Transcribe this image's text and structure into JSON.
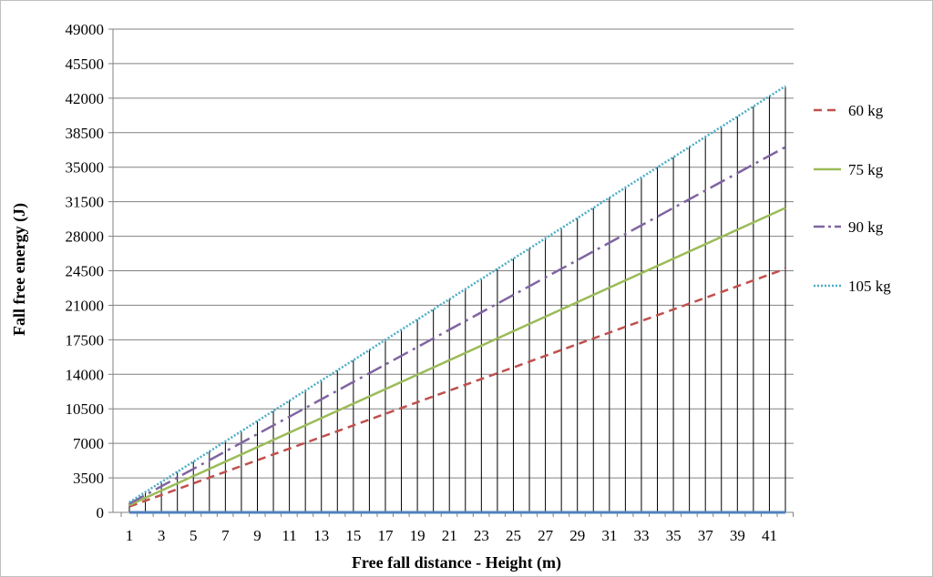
{
  "chart_data": {
    "type": "line",
    "xlabel": "Free fall distance - Height (m)",
    "ylabel": "Fall free energy (J)",
    "xlim": [
      1,
      42
    ],
    "ylim": [
      0,
      49000
    ],
    "y_ticks": [
      "0",
      "3500",
      "7000",
      "10500",
      "14000",
      "17500",
      "21000",
      "24500",
      "28000",
      "31500",
      "35000",
      "38500",
      "42000",
      "45500",
      "49000"
    ],
    "x_ticks": [
      "1",
      "3",
      "5",
      "7",
      "9",
      "11",
      "13",
      "15",
      "17",
      "19",
      "21",
      "23",
      "25",
      "27",
      "29",
      "31",
      "33",
      "35",
      "37",
      "39",
      "41"
    ],
    "x_tick_values": [
      1,
      3,
      5,
      7,
      9,
      11,
      13,
      15,
      17,
      19,
      21,
      23,
      25,
      27,
      29,
      31,
      33,
      35,
      37,
      39,
      41
    ],
    "grid": {
      "horizontal": true,
      "vertical_drop_lines": true
    },
    "legend_position": "right",
    "series": [
      {
        "name": "60 kg",
        "x": [
          1,
          42
        ],
        "values": [
          588,
          24696
        ],
        "color": "#c0504d",
        "style": "dashed"
      },
      {
        "name": "75 kg",
        "x": [
          1,
          42
        ],
        "values": [
          735,
          30870
        ],
        "color": "#9bbb59",
        "style": "solid"
      },
      {
        "name": "90 kg",
        "x": [
          1,
          42
        ],
        "values": [
          882,
          37044
        ],
        "color": "#8064a2",
        "style": "dash-dot"
      },
      {
        "name": "105 kg",
        "x": [
          1,
          42
        ],
        "values": [
          1029,
          43218
        ],
        "color": "#4bacc6",
        "style": "dotted"
      }
    ],
    "baseline_series": {
      "x": [
        1,
        42
      ],
      "values": [
        0,
        0
      ],
      "color": "#4f81bd"
    },
    "colors": {
      "grid": "#808080",
      "drop_line": "#000000",
      "frame": "#bfbfbf"
    }
  }
}
